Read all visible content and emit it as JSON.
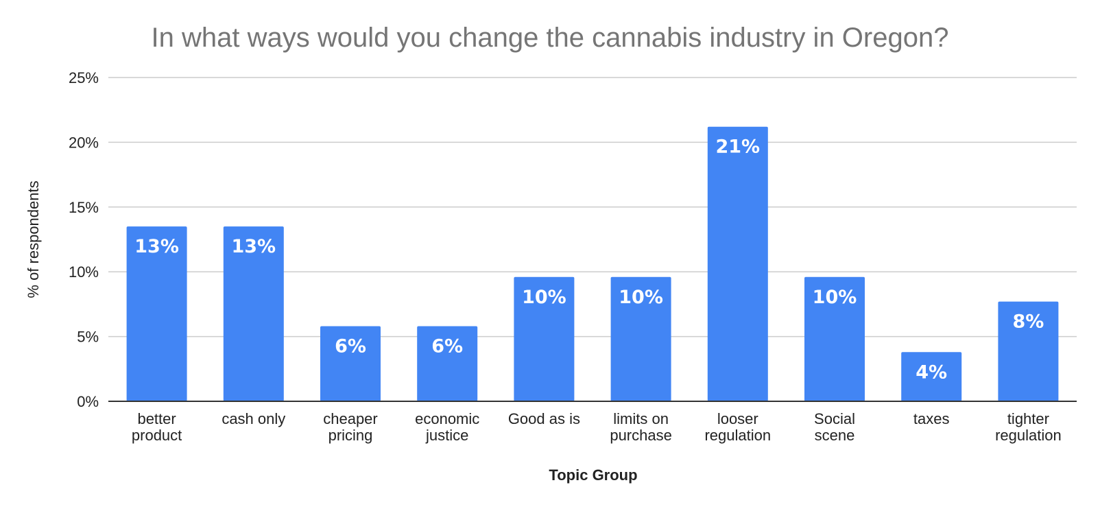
{
  "chart_data": {
    "type": "bar",
    "title": "In what ways would you change the cannabis industry in Oregon?",
    "xlabel": "Topic Group",
    "ylabel": "% of respondents",
    "categories": [
      [
        "better",
        "product"
      ],
      [
        "cash only"
      ],
      [
        "cheaper",
        "pricing"
      ],
      [
        "economic",
        "justice"
      ],
      [
        "Good as is"
      ],
      [
        "limits on",
        "purchase"
      ],
      [
        "looser",
        "regulation"
      ],
      [
        "Social",
        "scene"
      ],
      [
        "taxes"
      ],
      [
        "tighter",
        "regulation"
      ]
    ],
    "values": [
      13.5,
      13.5,
      5.8,
      5.8,
      9.6,
      9.6,
      21.2,
      9.6,
      3.8,
      7.7
    ],
    "data_labels": [
      "13%",
      "13%",
      "6%",
      "6%",
      "10%",
      "10%",
      "21%",
      "10%",
      "4%",
      "8%"
    ],
    "ylim": [
      0,
      25
    ],
    "yticks": [
      0,
      5,
      10,
      15,
      20,
      25
    ],
    "ytick_labels": [
      "0%",
      "5%",
      "10%",
      "15%",
      "20%",
      "25%"
    ],
    "grid": true,
    "legend": "none",
    "bar_color": "#4285f4"
  }
}
